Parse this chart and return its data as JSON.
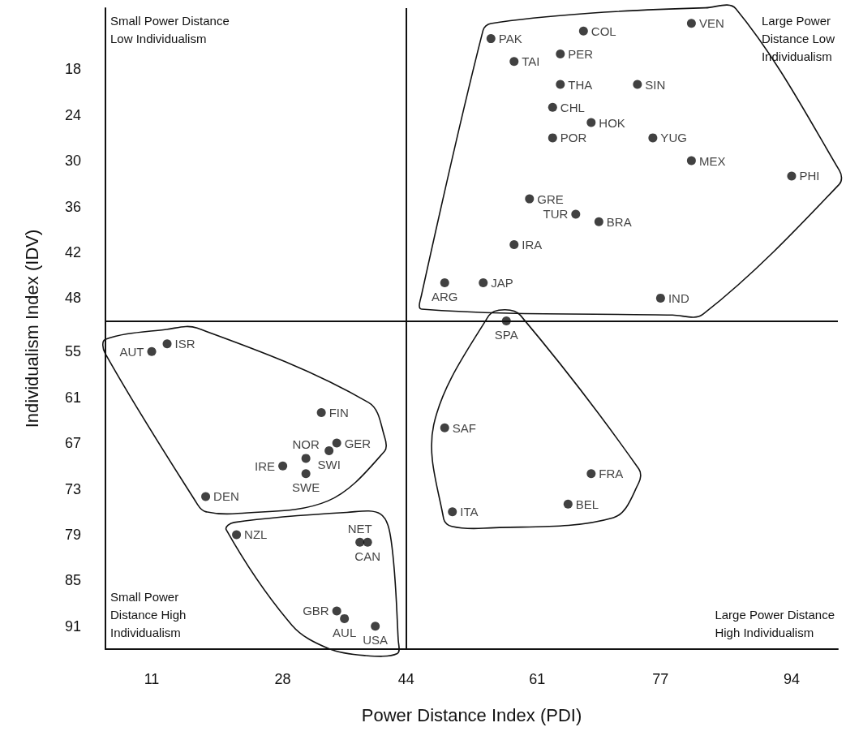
{
  "chart_data": {
    "type": "scatter",
    "xlabel": "Power Distance Index (PDI)",
    "ylabel": "Individualism Index (IDV)",
    "xlim": [
      5,
      100
    ],
    "xticks": [
      11,
      28,
      44,
      61,
      77,
      94
    ],
    "ylim": [
      94,
      10
    ],
    "yticks": [
      18,
      24,
      30,
      36,
      42,
      48,
      55,
      61,
      67,
      73,
      79,
      85,
      91
    ],
    "grid": false,
    "marker": "circle",
    "ref_lines": [
      {
        "axis": "x",
        "value": 44
      },
      {
        "axis": "y",
        "value": 51
      }
    ],
    "annotations": [
      "Small Power Distance Low Individualism",
      "Large Power Distance Low Individualism",
      "Small Power Distance High Individualism",
      "Large Power Distance High Individualism"
    ],
    "series": [
      {
        "color": "#111111",
        "x": [
          55,
          67,
          81,
          58,
          64,
          64,
          74,
          63,
          68,
          63,
          76,
          81,
          94,
          60,
          66,
          69,
          58,
          49,
          54,
          77
        ],
        "values": [
          14,
          13,
          12,
          17,
          16,
          20,
          20,
          23,
          25,
          27,
          27,
          30,
          32,
          35,
          37,
          38,
          41,
          46,
          46,
          48
        ],
        "value_labels": [
          "PAK",
          "COL",
          "VEN",
          "TAI",
          "PER",
          "THA",
          "SIN",
          "CHL",
          "HOK",
          "POR",
          "YUG",
          "MEX",
          "PHI",
          "GRE",
          "TUR",
          "BRA",
          "IRA",
          "ARG",
          "JAP",
          "IND"
        ]
      },
      {
        "color": "#111111",
        "x": [
          11,
          13,
          33,
          35,
          31,
          34,
          28,
          31,
          18
        ],
        "values": [
          55,
          54,
          63,
          67,
          69,
          68,
          70,
          71,
          74
        ],
        "value_labels": [
          "AUT",
          "ISR",
          "FIN",
          "GER",
          "NOR",
          "SWI",
          "IRE",
          "SWE",
          "DEN"
        ]
      },
      {
        "color": "#111111",
        "x": [
          22,
          39,
          38,
          35,
          40,
          36
        ],
        "values": [
          79,
          80,
          80,
          89,
          91,
          90
        ],
        "value_labels": [
          "NZL",
          "CAN",
          "NET",
          "GBR",
          "USA",
          "AUL"
        ]
      },
      {
        "color": "#111111",
        "x": [
          57,
          49,
          68,
          65,
          50
        ],
        "values": [
          51,
          65,
          71,
          75,
          76
        ],
        "value_labels": [
          "SPA",
          "SAF",
          "FRA",
          "BEL",
          "ITA"
        ]
      }
    ]
  }
}
